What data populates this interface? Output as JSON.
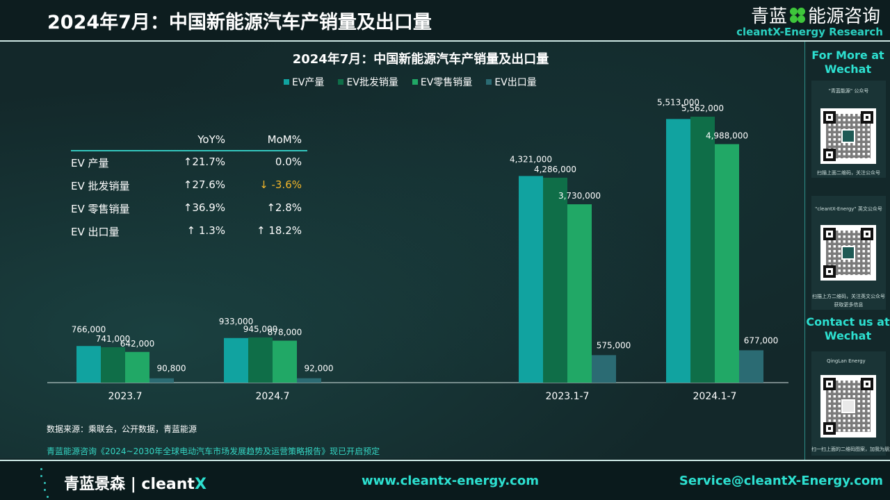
{
  "header": {
    "title": "2024年7月：中国新能源汽车产销量及出口量",
    "brand_cn_left": "青蓝",
    "brand_cn_right": "能源咨询",
    "brand_en": "cleantX-Energy Research"
  },
  "colors": {
    "production": "#11a3a0",
    "wholesale": "#0f6e48",
    "retail": "#21a866",
    "export": "#2b6b73",
    "accent": "#2de0d0",
    "negative": "#f2b62a"
  },
  "stats_table": {
    "headers": {
      "yoy": "YoY%",
      "mom": "MoM%"
    },
    "rows": [
      {
        "label": "EV 产量",
        "yoy": "↑21.7%",
        "mom": "0.0%",
        "mom_negative": false
      },
      {
        "label": "EV 批发销量",
        "yoy": "↑27.6%",
        "mom": "↓ -3.6%",
        "mom_negative": true
      },
      {
        "label": "EV 零售销量",
        "yoy": "↑36.9%",
        "mom": "↑2.8%",
        "mom_negative": false
      },
      {
        "label": "EV 出口量",
        "yoy": "↑ 1.3%",
        "mom": "↑ 18.2%",
        "mom_negative": false
      }
    ]
  },
  "chart_data": [
    {
      "type": "bar",
      "title": "2024年7月：中国新能源汽车产销量及出口量",
      "legend_position": "top",
      "grid": false,
      "categories": [
        "2023.7",
        "2024.7"
      ],
      "series": [
        {
          "name": "EV产量",
          "values": [
            766000,
            933000
          ],
          "labels": [
            "766,000",
            "933,000"
          ]
        },
        {
          "name": "EV批发销量",
          "values": [
            741000,
            945000
          ],
          "labels": [
            "741,000",
            "945,000"
          ]
        },
        {
          "name": "EV零售销量",
          "values": [
            642000,
            878000
          ],
          "labels": [
            "642,000",
            "878,000"
          ]
        },
        {
          "name": "EV出口量",
          "values": [
            90800,
            92000
          ],
          "labels": [
            "90,800",
            "92,000"
          ]
        }
      ],
      "ylim": [
        0,
        5562000
      ]
    },
    {
      "type": "bar",
      "categories": [
        "2023.1-7",
        "2024.1-7"
      ],
      "series": [
        {
          "name": "EV产量",
          "values": [
            4321000,
            5513000
          ],
          "labels": [
            "4,321,000",
            "5,513,000"
          ]
        },
        {
          "name": "EV批发销量",
          "values": [
            4286000,
            5562000
          ],
          "labels": [
            "4,286,000",
            "5,562,000"
          ]
        },
        {
          "name": "EV零售销量",
          "values": [
            3730000,
            4988000
          ],
          "labels": [
            "3,730,000",
            "4,988,000"
          ]
        },
        {
          "name": "EV出口量",
          "values": [
            575000,
            677000
          ],
          "labels": [
            "575,000",
            "677,000"
          ]
        }
      ],
      "ylim": [
        0,
        5562000
      ]
    }
  ],
  "notes": {
    "source": "数据来源：乘联会，公开数据，青蓝能源",
    "promo": "青蓝能源咨询《2024~2030年全球电动汽车市场发展趋势及运营策略报告》现已开启预定"
  },
  "sidebar": {
    "more_title": "For More at Wechat",
    "qr1_caption_top": "\"青蓝能源\" 公众号",
    "qr1_caption_bottom": "扫描上面二维码，关注公众号",
    "qr2_caption_top": "\"cleantX-Energy\" 英文公众号",
    "qr2_caption_bottom": "扫描上方二维码，关注英文公众号",
    "qr2_caption_extra": "获取更多信息",
    "contact_title": "Contact us at Wechat",
    "qr3_caption_top": "QingLan Energy",
    "qr3_caption_bottom": "扫一扫上面的二维码图案，加我为朋友。"
  },
  "footer": {
    "brand_cn": "青蓝景森",
    "brand_sep": "|",
    "brand_en_a": "cleant",
    "brand_en_b": "X",
    "website": "www.cleantx-energy.com",
    "email": "Service@cleantX-Energy.com"
  }
}
